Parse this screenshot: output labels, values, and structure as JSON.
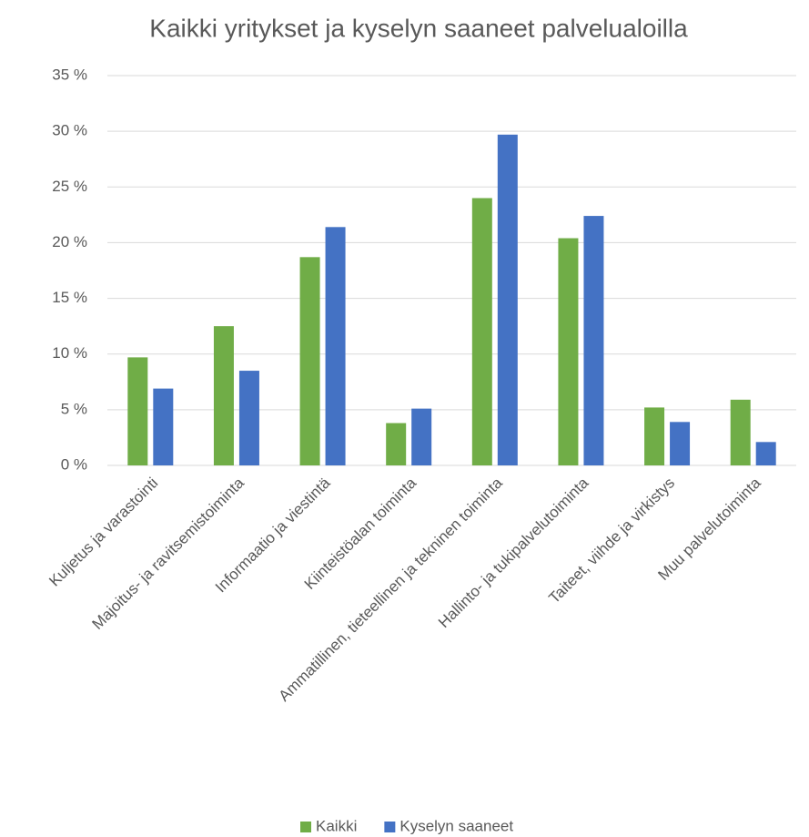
{
  "chart_data": {
    "type": "bar",
    "title": "Kaikki yritykset ja kyselyn saaneet palvelualoilla",
    "categories": [
      "Kuljetus ja varastointi",
      "Majoitus- ja ravitsemistoiminta",
      "Informaatio ja viestintä",
      "Kiinteistöalan toiminta",
      "Ammatillinen, tieteellinen ja tekninen toiminta",
      "Hallinto- ja tukipalvelutoiminta",
      "Taiteet, viihde ja virkistys",
      "Muu palvelutoiminta"
    ],
    "series": [
      {
        "name": "Kaikki",
        "color": "#70ad47",
        "values": [
          9.7,
          12.5,
          18.7,
          3.8,
          24.0,
          20.4,
          5.2,
          5.9
        ]
      },
      {
        "name": "Kyselyn saaneet",
        "color": "#4472c4",
        "values": [
          6.9,
          8.5,
          21.4,
          5.1,
          29.7,
          22.4,
          3.9,
          2.1
        ]
      }
    ],
    "ylim": [
      0,
      35
    ],
    "yticks": [
      {
        "value": 0,
        "label": "0 %"
      },
      {
        "value": 5,
        "label": "5 %"
      },
      {
        "value": 10,
        "label": "10 %"
      },
      {
        "value": 15,
        "label": "15 %"
      },
      {
        "value": 20,
        "label": "20 %"
      },
      {
        "value": 25,
        "label": "25 %"
      },
      {
        "value": 30,
        "label": "30 %"
      },
      {
        "value": 35,
        "label": "35 %"
      }
    ],
    "grid": true,
    "legend": "bottom"
  }
}
